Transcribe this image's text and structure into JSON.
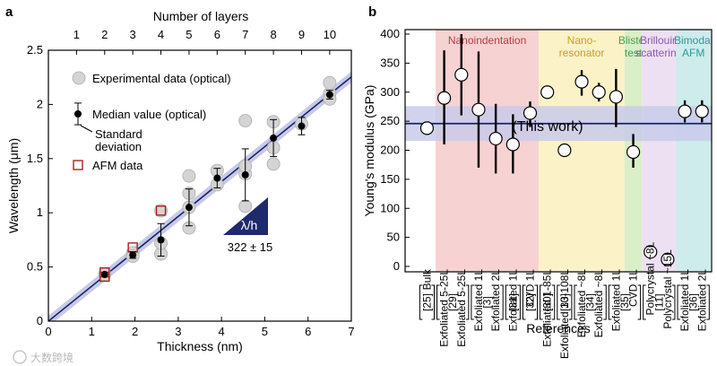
{
  "chart_data": [
    {
      "panel": "a",
      "type": "scatter",
      "xlabel": "Thickness (nm)",
      "ylabel": "Wavelength (μm)",
      "top_xlabel": "Number of layers",
      "xlim": [
        0,
        7
      ],
      "ylim": [
        0,
        2.5
      ],
      "xticks": [
        "0",
        "1",
        "2",
        "3",
        "4",
        "5",
        "6",
        "7"
      ],
      "yticks": [
        "0",
        "0.5",
        "1",
        "1.5",
        "2",
        "2.5"
      ],
      "top_ticks": [
        "1",
        "2",
        "3",
        "4",
        "5",
        "6",
        "7",
        "8",
        "9",
        "10"
      ],
      "layer_thickness_nm": 0.65,
      "legend": {
        "experimental": "Experimental data (optical)",
        "median": "Median value (optical)",
        "std1": "Standard",
        "std2": "deviation",
        "afm": "AFM data"
      },
      "experimental": [
        {
          "x": 1.3,
          "y": 0.43
        },
        {
          "x": 1.95,
          "y": 0.63
        },
        {
          "x": 1.95,
          "y": 0.6
        },
        {
          "x": 2.6,
          "y": 0.62
        },
        {
          "x": 2.6,
          "y": 1.02
        },
        {
          "x": 2.6,
          "y": 0.72
        },
        {
          "x": 3.25,
          "y": 0.86
        },
        {
          "x": 3.25,
          "y": 1.05
        },
        {
          "x": 3.25,
          "y": 1.18
        },
        {
          "x": 3.25,
          "y": 1.34
        },
        {
          "x": 3.9,
          "y": 1.26
        },
        {
          "x": 3.9,
          "y": 1.39
        },
        {
          "x": 4.55,
          "y": 1.06
        },
        {
          "x": 4.55,
          "y": 1.36
        },
        {
          "x": 4.55,
          "y": 1.43
        },
        {
          "x": 4.55,
          "y": 1.85
        },
        {
          "x": 5.2,
          "y": 1.45
        },
        {
          "x": 5.2,
          "y": 1.6
        },
        {
          "x": 5.2,
          "y": 1.84
        },
        {
          "x": 5.85,
          "y": 1.82
        },
        {
          "x": 6.5,
          "y": 2.1
        },
        {
          "x": 6.5,
          "y": 2.2
        },
        {
          "x": 6.5,
          "y": 2.05
        }
      ],
      "median": [
        {
          "x": 1.3,
          "y": 0.43,
          "err": 0.0
        },
        {
          "x": 1.95,
          "y": 0.61,
          "err": 0.03
        },
        {
          "x": 2.6,
          "y": 0.75,
          "err": 0.15
        },
        {
          "x": 3.25,
          "y": 1.05,
          "err": 0.17
        },
        {
          "x": 3.9,
          "y": 1.32,
          "err": 0.09
        },
        {
          "x": 4.55,
          "y": 1.35,
          "err": 0.24
        },
        {
          "x": 5.2,
          "y": 1.69,
          "err": 0.17
        },
        {
          "x": 5.85,
          "y": 1.8,
          "err": 0.08
        },
        {
          "x": 6.5,
          "y": 2.09,
          "err": 0.04
        }
      ],
      "legend_errbar_halfwidth": 0.1,
      "afm": [
        {
          "x": 1.3,
          "y": 0.41
        },
        {
          "x": 1.3,
          "y": 0.45
        },
        {
          "x": 1.95,
          "y": 0.68
        },
        {
          "x": 2.6,
          "y": 1.02
        }
      ],
      "fit": {
        "slope": 0.322,
        "intercept": 0.0,
        "band": 0.05
      },
      "annotation": {
        "slope_label": "λ/h",
        "value_label": "322 ± 15"
      }
    },
    {
      "panel": "b",
      "type": "scatter",
      "xlabel": "References",
      "ylabel": "Young's modulus (GPa)",
      "ylim": [
        0,
        400
      ],
      "yticks": [
        "0",
        "50",
        "100",
        "150",
        "200",
        "250",
        "300",
        "350",
        "400"
      ],
      "this_work": {
        "value": 246,
        "low": 216,
        "high": 276,
        "label": "(This work)"
      },
      "regions": [
        {
          "label": "Nanoindentation",
          "label2": "",
          "from": 1,
          "to": 6,
          "color": "#f6d2d2",
          "text_color": "#b04040"
        },
        {
          "label": "Nano-",
          "label2": "resonator",
          "from": 7,
          "to": 11,
          "color": "#fbf2c8",
          "text_color": "#c8a020"
        },
        {
          "label": "Blister",
          "label2": "test",
          "from": 12,
          "to": 12,
          "color": "#d8efc8",
          "text_color": "#4aa04a"
        },
        {
          "label": "Brillouin",
          "label2": "scattering",
          "from": 13,
          "to": 14,
          "color": "#ece0f2",
          "text_color": "#8a5aa8"
        },
        {
          "label": "Bimodal",
          "label2": "AFM",
          "from": 15,
          "to": 16,
          "color": "#cdeceb",
          "text_color": "#2a9a9a"
        }
      ],
      "samples": [
        {
          "label": "Bulk",
          "value": 238,
          "low": null,
          "high": null
        },
        {
          "label": "Exfoliated 5-25L",
          "value": 290,
          "low": 210,
          "high": 372
        },
        {
          "label": "Exfoliated 5-25L",
          "value": 330,
          "low": 260,
          "high": 400
        },
        {
          "label": "Exfoliated 1L",
          "value": 270,
          "low": 170,
          "high": 370
        },
        {
          "label": "Exfoliated 2L",
          "value": 220,
          "low": 160,
          "high": 280
        },
        {
          "label": "Exfoliated 1L",
          "value": 210,
          "low": 160,
          "high": 262
        },
        {
          "label": "CVD 1L",
          "value": 264,
          "low": 240,
          "high": 284
        },
        {
          "label": "Exfoliated 1-85L",
          "value": 300,
          "low": null,
          "high": null
        },
        {
          "label": "Exfoliated 10-108L",
          "value": 200,
          "low": null,
          "high": null
        },
        {
          "label": "Exfoliated ~8L",
          "value": 318,
          "low": 294,
          "high": 338
        },
        {
          "label": "Exfoliated ~8L",
          "value": 300,
          "low": 284,
          "high": 316
        },
        {
          "label": "Exfoliated 1L",
          "value": 292,
          "low": 240,
          "high": 340
        },
        {
          "label": "CVD 1L",
          "value": 197,
          "low": 170,
          "high": 228
        },
        {
          "label": "Polycrystal ~8L",
          "value": 25,
          "low": null,
          "high": null
        },
        {
          "label": "Polycrystal ~15L",
          "value": 12,
          "low": null,
          "high": null
        },
        {
          "label": "Exfoliated 1L",
          "value": 267,
          "low": 248,
          "high": 286
        },
        {
          "label": "Exfoliated 2L",
          "value": 267,
          "low": 248,
          "high": 286
        }
      ],
      "references": [
        {
          "label": "[25]",
          "from": 0,
          "to": 0
        },
        {
          "label": "[29]",
          "from": 1,
          "to": 2
        },
        {
          "label": "[3]",
          "from": 3,
          "to": 4
        },
        {
          "label": "[31]",
          "from": 5,
          "to": 5
        },
        {
          "label": "[32]",
          "from": 6,
          "to": 6
        },
        {
          "label": "[30]",
          "from": 7,
          "to": 7
        },
        {
          "label": "[33]",
          "from": 8,
          "to": 8
        },
        {
          "label": "[34]",
          "from": 9,
          "to": 10
        },
        {
          "label": "[35]",
          "from": 11,
          "to": 12
        },
        {
          "label": "[11]",
          "from": 13,
          "to": 14
        },
        {
          "label": "[36]",
          "from": 15,
          "to": 16
        }
      ]
    }
  ],
  "watermark": "大数跨境"
}
